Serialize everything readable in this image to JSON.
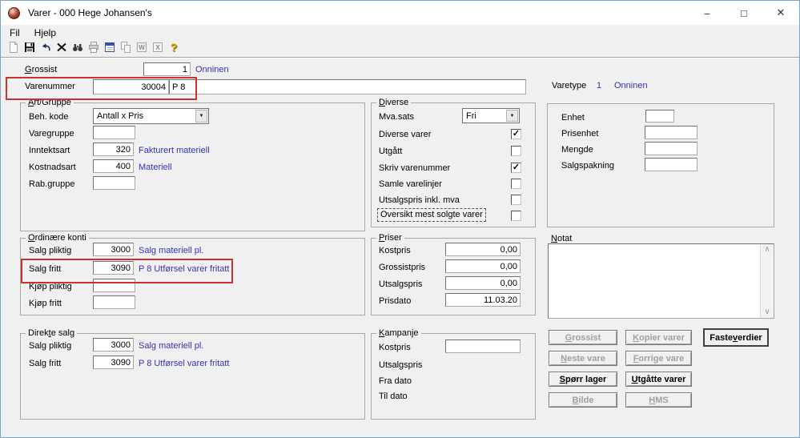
{
  "window": {
    "title": "Varer - 000 Hege Johansen's",
    "controls": {
      "minimize": "–",
      "maximize": "□",
      "close": "✕"
    }
  },
  "menu": {
    "items": [
      "Fil",
      "Hjelp"
    ]
  },
  "toolbar": {
    "icons": [
      "new-document-icon",
      "save-icon",
      "undo-icon",
      "delete-icon",
      "find-icon",
      "print-icon",
      "form-icon",
      "copy-icon",
      "word-export-icon",
      "excel-export-icon",
      "help-icon"
    ]
  },
  "header": {
    "grossist_label": "Grossist",
    "grossist_value": "1",
    "grossist_name": "Onninen",
    "varenummer_label": "Varenummer",
    "varenummer_value": "30004",
    "varenummer_desc": "P 8",
    "varetype_label": "Varetype",
    "varetype_value": "1",
    "varetype_name": "Onninen"
  },
  "art_gruppe": {
    "title": "Art/Gruppe",
    "beh_kode_label": "Beh. kode",
    "beh_kode_value": "Antall x Pris",
    "varegruppe_label": "Varegruppe",
    "varegruppe_value": "",
    "inntektsart_label": "Inntektsart",
    "inntektsart_value": "320",
    "inntektsart_desc": "Fakturert materiell",
    "kostnadsart_label": "Kostnadsart",
    "kostnadsart_value": "400",
    "kostnadsart_desc": "Materiell",
    "rab_gruppe_label": "Rab.gruppe",
    "rab_gruppe_value": ""
  },
  "diverse": {
    "title": "Diverse",
    "mva_label": "Mva.sats",
    "mva_value": "Fri",
    "checkboxes": [
      {
        "label": "Diverse varer",
        "checked": true
      },
      {
        "label": "Utgått",
        "checked": false
      },
      {
        "label": "Skriv varenummer",
        "checked": true
      },
      {
        "label": "Samle varelinjer",
        "checked": false
      },
      {
        "label": "Utsalgspris inkl. mva",
        "checked": false
      },
      {
        "label": "Oversikt mest solgte varer",
        "checked": false
      }
    ]
  },
  "units": {
    "enhet_label": "Enhet",
    "enhet_value": "",
    "prisenhet_label": "Prisenhet",
    "prisenhet_value": "",
    "mengde_label": "Mengde",
    "mengde_value": "",
    "salgspakning_label": "Salgspakning",
    "salgspakning_value": ""
  },
  "ordinaere_konti": {
    "title": "Ordinære konti",
    "salg_pliktig_label": "Salg pliktig",
    "salg_pliktig_value": "3000",
    "salg_pliktig_desc": "Salg materiell pl.",
    "salg_fritt_label": "Salg fritt",
    "salg_fritt_value": "3090",
    "salg_fritt_desc": "P 8 Utførsel varer fritatt",
    "kjop_pliktig_label": "Kjøp pliktig",
    "kjop_pliktig_value": "",
    "kjop_fritt_label": "Kjøp fritt",
    "kjop_fritt_value": ""
  },
  "priser": {
    "title": "Priser",
    "kostpris_label": "Kostpris",
    "kostpris_value": "0,00",
    "grossistpris_label": "Grossistpris",
    "grossistpris_value": "0,00",
    "utsalgspris_label": "Utsalgspris",
    "utsalgspris_value": "0,00",
    "prisdato_label": "Prisdato",
    "prisdato_value": "11.03.20"
  },
  "direkte_salg": {
    "title": "Direkte salg",
    "salg_pliktig_label": "Salg pliktig",
    "salg_pliktig_value": "3000",
    "salg_pliktig_desc": "Salg materiell pl.",
    "salg_fritt_label": "Salg fritt",
    "salg_fritt_value": "3090",
    "salg_fritt_desc": "P 8 Utførsel varer fritatt"
  },
  "kampanje": {
    "title": "Kampanje",
    "kostpris_label": "Kostpris",
    "kostpris_value": "",
    "utsalgspris_label": "Utsalgspris",
    "fra_dato_label": "Fra dato",
    "til_dato_label": "Til dato"
  },
  "notat": {
    "label": "Notat",
    "value": ""
  },
  "buttons": {
    "grossist": "Grossist",
    "kopier_varer": "Kopier varer",
    "faste_verdier": "Faste verdier",
    "neste_vare": "Neste vare",
    "forrige_vare": "Forrige vare",
    "sporr_lager": "Spørr lager",
    "utgatte_varer": "Utgåtte varer",
    "bilde": "Bilde",
    "hms": "HMS"
  },
  "colors": {
    "link_blue": "#3333b4",
    "highlight_red": "#c9332f",
    "form_bg": "#f0f0f0"
  }
}
